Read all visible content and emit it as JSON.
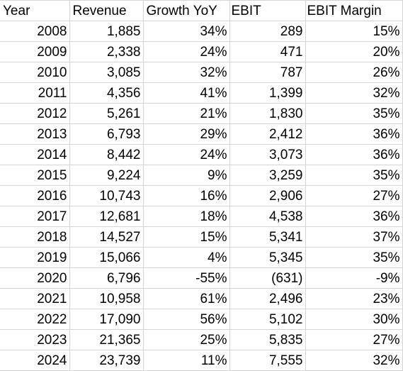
{
  "table": {
    "headers": [
      "Year",
      "Revenue",
      "Growth YoY",
      "EBIT",
      "EBIT Margin"
    ],
    "rows": [
      [
        "2008",
        "1,885",
        "34%",
        "289",
        "15%"
      ],
      [
        "2009",
        "2,338",
        "24%",
        "471",
        "20%"
      ],
      [
        "2010",
        "3,085",
        "32%",
        "787",
        "26%"
      ],
      [
        "2011",
        "4,356",
        "41%",
        "1,399",
        "32%"
      ],
      [
        "2012",
        "5,261",
        "21%",
        "1,830",
        "35%"
      ],
      [
        "2013",
        "6,793",
        "29%",
        "2,412",
        "36%"
      ],
      [
        "2014",
        "8,442",
        "24%",
        "3,073",
        "36%"
      ],
      [
        "2015",
        "9,224",
        "9%",
        "3,259",
        "35%"
      ],
      [
        "2016",
        "10,743",
        "16%",
        "2,906",
        "27%"
      ],
      [
        "2017",
        "12,681",
        "18%",
        "4,538",
        "36%"
      ],
      [
        "2018",
        "14,527",
        "15%",
        "5,341",
        "37%"
      ],
      [
        "2019",
        "15,066",
        "4%",
        "5,345",
        "35%"
      ],
      [
        "2020",
        "6,796",
        "-55%",
        "(631)",
        "-9%"
      ],
      [
        "2021",
        "10,958",
        "61%",
        "2,496",
        "23%"
      ],
      [
        "2022",
        "17,090",
        "56%",
        "5,102",
        "30%"
      ],
      [
        "2023",
        "21,365",
        "25%",
        "5,835",
        "27%"
      ],
      [
        "2024",
        "23,739",
        "11%",
        "7,555",
        "32%"
      ]
    ]
  },
  "colors": {
    "gridline": "#d4d4d4",
    "text": "#000000",
    "background": "#ffffff"
  }
}
